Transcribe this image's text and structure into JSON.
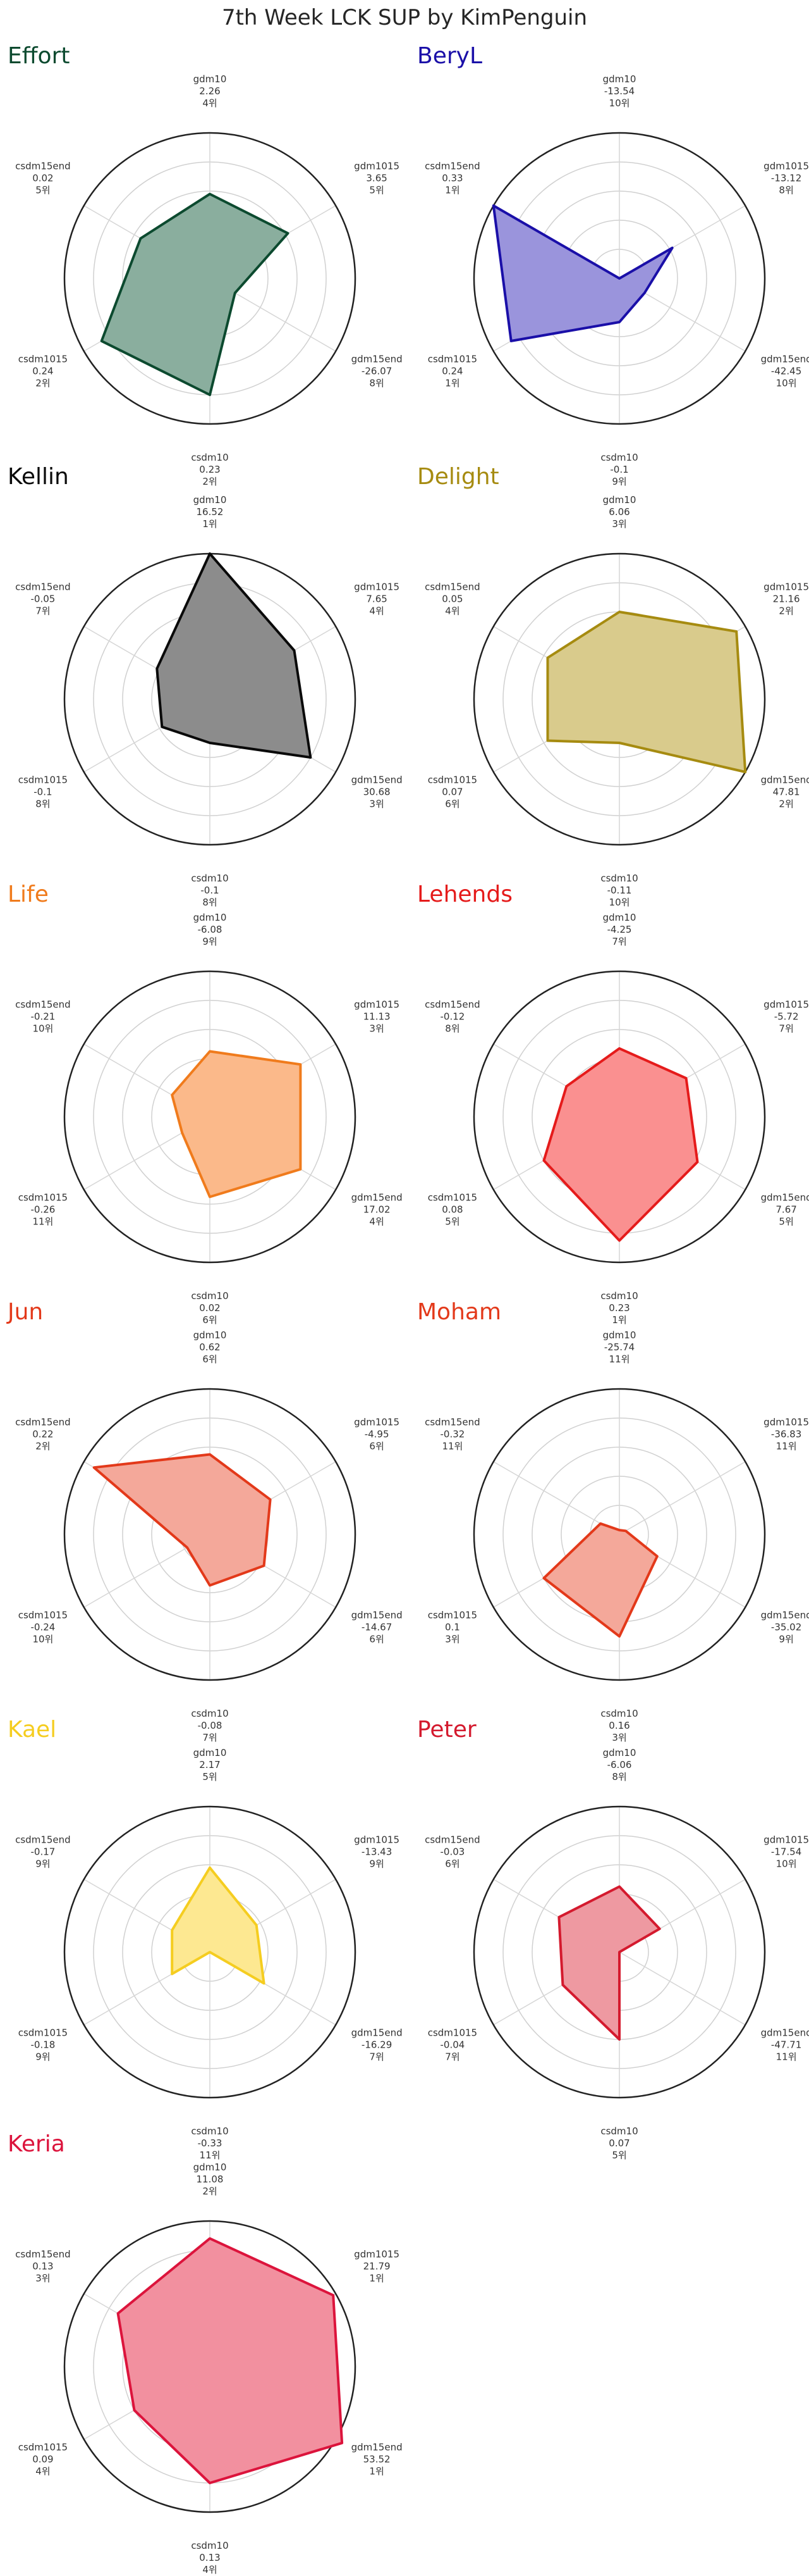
{
  "title": "7th Week LCK SUP by KimPenguin",
  "chart_data": [
    {
      "type": "radar",
      "name": "Effort",
      "color": "#0c4a2f",
      "fill": "#8aae9e",
      "axes": [
        "gdm10",
        "gdm1015",
        "gdm15end",
        "csdm10",
        "csdm1015",
        "csdm15end"
      ],
      "values": [
        "2.26",
        "3.65",
        "-26.07",
        "0.23",
        "0.24",
        "0.02"
      ],
      "ranks": [
        "4위",
        "5위",
        "8위",
        "2위",
        "2위",
        "5위"
      ],
      "normalized": [
        0.58,
        0.62,
        0.2,
        0.8,
        0.86,
        0.55
      ]
    },
    {
      "type": "radar",
      "name": "BeryL",
      "color": "#1a0fa8",
      "fill": "#9a94dc",
      "axes": [
        "gdm10",
        "gdm1015",
        "gdm15end",
        "csdm10",
        "csdm1015",
        "csdm15end"
      ],
      "values": [
        "-13.54",
        "-13.12",
        "-42.45",
        "-0.1",
        "0.24",
        "0.33"
      ],
      "ranks": [
        "10위",
        "8위",
        "10위",
        "9위",
        "1위",
        "1위"
      ],
      "normalized": [
        0.0,
        0.42,
        0.2,
        0.3,
        0.86,
        1.0
      ]
    },
    {
      "type": "radar",
      "name": "Kellin",
      "color": "#0a0a0a",
      "fill": "#8c8c8c",
      "axes": [
        "gdm10",
        "gdm1015",
        "gdm15end",
        "csdm10",
        "csdm1015",
        "csdm15end"
      ],
      "values": [
        "16.52",
        "7.65",
        "30.68",
        "-0.1",
        "-0.1",
        "-0.05"
      ],
      "ranks": [
        "1위",
        "4위",
        "3위",
        "8위",
        "8위",
        "7위"
      ],
      "normalized": [
        1.0,
        0.67,
        0.8,
        0.3,
        0.38,
        0.42
      ]
    },
    {
      "type": "radar",
      "name": "Delight",
      "color": "#a68b10",
      "fill": "#d9cb8c",
      "axes": [
        "gdm10",
        "gdm1015",
        "gdm15end",
        "csdm10",
        "csdm1015",
        "csdm15end"
      ],
      "values": [
        "6.06",
        "21.16",
        "47.81",
        "-0.11",
        "0.07",
        "0.05"
      ],
      "ranks": [
        "3위",
        "2위",
        "2위",
        "10위",
        "6위",
        "4위"
      ],
      "normalized": [
        0.6,
        0.93,
        1.0,
        0.3,
        0.57,
        0.57
      ]
    },
    {
      "type": "radar",
      "name": "Life",
      "color": "#f07b1c",
      "fill": "#fbb98a",
      "axes": [
        "gdm10",
        "gdm1015",
        "gdm15end",
        "csdm10",
        "csdm1015",
        "csdm15end"
      ],
      "values": [
        "-6.08",
        "11.13",
        "17.02",
        "0.02",
        "-0.26",
        "-0.21"
      ],
      "ranks": [
        "9위",
        "3위",
        "4위",
        "6위",
        "11위",
        "10위"
      ],
      "normalized": [
        0.45,
        0.72,
        0.72,
        0.55,
        0.22,
        0.3
      ]
    },
    {
      "type": "radar",
      "name": "Lehends",
      "color": "#e51b1b",
      "fill": "#fa9090",
      "axes": [
        "gdm10",
        "gdm1015",
        "gdm15end",
        "csdm10",
        "csdm1015",
        "csdm15end"
      ],
      "values": [
        "-4.25",
        "-5.72",
        "7.67",
        "0.23",
        "0.08",
        "-0.12"
      ],
      "ranks": [
        "7위",
        "7위",
        "5위",
        "1위",
        "5위",
        "8위"
      ],
      "normalized": [
        0.47,
        0.53,
        0.62,
        0.85,
        0.6,
        0.42
      ]
    },
    {
      "type": "radar",
      "name": "Jun",
      "color": "#e3391a",
      "fill": "#f4a89a",
      "axes": [
        "gdm10",
        "gdm1015",
        "gdm15end",
        "csdm10",
        "csdm1015",
        "csdm15end"
      ],
      "values": [
        "0.62",
        "-4.95",
        "-14.67",
        "-0.08",
        "-0.24",
        "0.22"
      ],
      "ranks": [
        "6위",
        "6위",
        "6위",
        "7위",
        "10위",
        "2위"
      ],
      "normalized": [
        0.55,
        0.48,
        0.43,
        0.35,
        0.18,
        0.92
      ]
    },
    {
      "type": "radar",
      "name": "Moham",
      "color": "#e3391a",
      "fill": "#f4a89a",
      "axes": [
        "gdm10",
        "gdm1015",
        "gdm15end",
        "csdm10",
        "csdm1015",
        "csdm15end"
      ],
      "values": [
        "-25.74",
        "-36.83",
        "-35.02",
        "0.16",
        "0.1",
        "-0.32"
      ],
      "ranks": [
        "11위",
        "11위",
        "9위",
        "3위",
        "3위",
        "11위"
      ],
      "normalized": [
        0.03,
        0.05,
        0.3,
        0.7,
        0.6,
        0.15
      ]
    },
    {
      "type": "radar",
      "name": "Kael",
      "color": "#f5cd20",
      "fill": "#fde891",
      "axes": [
        "gdm10",
        "gdm1015",
        "gdm15end",
        "csdm10",
        "csdm1015",
        "csdm15end"
      ],
      "values": [
        "2.17",
        "-13.43",
        "-16.29",
        "-0.33",
        "-0.18",
        "-0.17"
      ],
      "ranks": [
        "5위",
        "9위",
        "7위",
        "11위",
        "9위",
        "9위"
      ],
      "normalized": [
        0.58,
        0.37,
        0.43,
        0.0,
        0.3,
        0.3
      ]
    },
    {
      "type": "radar",
      "name": "Peter",
      "color": "#d41a2e",
      "fill": "#ee99a1",
      "axes": [
        "gdm10",
        "gdm1015",
        "gdm15end",
        "csdm10",
        "csdm1015",
        "csdm15end"
      ],
      "values": [
        "-6.06",
        "-17.54",
        "-47.71",
        "0.07",
        "-0.04",
        "-0.03"
      ],
      "ranks": [
        "8위",
        "10위",
        "11위",
        "5위",
        "7위",
        "6위"
      ],
      "normalized": [
        0.45,
        0.32,
        0.0,
        0.6,
        0.45,
        0.48
      ]
    },
    {
      "type": "radar",
      "name": "Keria",
      "color": "#dc143c",
      "fill": "#f2909f",
      "axes": [
        "gdm10",
        "gdm1015",
        "gdm15end",
        "csdm10",
        "csdm1015",
        "csdm15end"
      ],
      "values": [
        "11.08",
        "21.79",
        "53.52",
        "0.13",
        "0.09",
        "0.13"
      ],
      "ranks": [
        "2위",
        "1위",
        "1위",
        "4위",
        "4위",
        "3위"
      ],
      "normalized": [
        0.88,
        0.98,
        1.05,
        0.8,
        0.6,
        0.73
      ]
    }
  ]
}
